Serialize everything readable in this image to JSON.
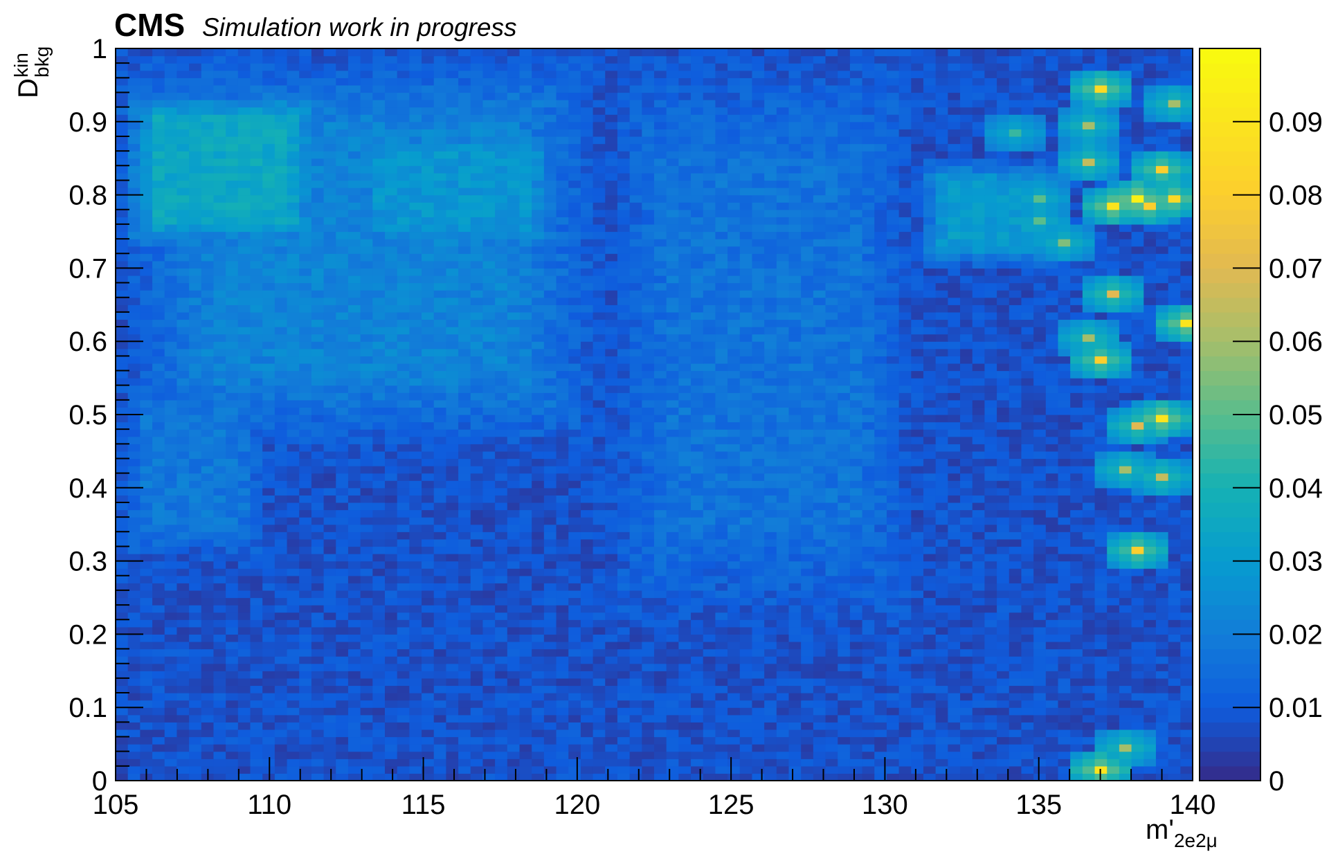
{
  "header": {
    "experiment": "CMS",
    "subtitle": "Simulation work in progress"
  },
  "chart_data": {
    "type": "heatmap",
    "title": "",
    "xlabel": {
      "main": "m'",
      "sub": "2e2μ"
    },
    "ylabel": {
      "main": "D",
      "sup": "kin",
      "sub": "bkg"
    },
    "xlim": [
      105,
      140
    ],
    "ylim": [
      0,
      1
    ],
    "zlim": [
      0,
      0.1
    ],
    "x_ticks": [
      "105",
      "110",
      "115",
      "120",
      "125",
      "130",
      "135",
      "140"
    ],
    "y_ticks": [
      "0",
      "0.1",
      "0.2",
      "0.3",
      "0.4",
      "0.5",
      "0.6",
      "0.7",
      "0.8",
      "0.9",
      "1"
    ],
    "z_ticks": [
      "0",
      "0.01",
      "0.02",
      "0.03",
      "0.04",
      "0.05",
      "0.06",
      "0.07",
      "0.08",
      "0.09"
    ],
    "palette": "kBird",
    "grid": false,
    "regions": [
      {
        "x": [
          105,
          140
        ],
        "y": [
          0,
          1
        ],
        "z": 0.008
      },
      {
        "x": [
          105,
          121
        ],
        "y": [
          0.45,
          1
        ],
        "z": 0.022
      },
      {
        "x": [
          121,
          131
        ],
        "y": [
          0.2,
          1
        ],
        "z": 0.017
      },
      {
        "x": [
          105,
          112
        ],
        "y": [
          0.72,
          0.95
        ],
        "z": 0.035
      },
      {
        "x": [
          112,
          120
        ],
        "y": [
          0.72,
          0.9
        ],
        "z": 0.028
      },
      {
        "x": [
          131,
          136
        ],
        "y": [
          0.7,
          0.85
        ],
        "z": 0.03
      },
      {
        "x": [
          105,
          110
        ],
        "y": [
          0.3,
          0.55
        ],
        "z": 0.018
      }
    ],
    "hot_cells": [
      {
        "x": 136.9,
        "y": 0.945,
        "z": 0.085
      },
      {
        "x": 139.3,
        "y": 0.925,
        "z": 0.06
      },
      {
        "x": 139.0,
        "y": 0.835,
        "z": 0.08
      },
      {
        "x": 138.2,
        "y": 0.795,
        "z": 0.095
      },
      {
        "x": 139.6,
        "y": 0.795,
        "z": 0.085
      },
      {
        "x": 138.8,
        "y": 0.785,
        "z": 0.08
      },
      {
        "x": 137.6,
        "y": 0.785,
        "z": 0.09
      },
      {
        "x": 136.7,
        "y": 0.895,
        "z": 0.06
      },
      {
        "x": 136.7,
        "y": 0.845,
        "z": 0.065
      },
      {
        "x": 137.5,
        "y": 0.665,
        "z": 0.07
      },
      {
        "x": 139.8,
        "y": 0.625,
        "z": 0.09
      },
      {
        "x": 137.1,
        "y": 0.575,
        "z": 0.08
      },
      {
        "x": 136.5,
        "y": 0.605,
        "z": 0.06
      },
      {
        "x": 138.9,
        "y": 0.495,
        "z": 0.09
      },
      {
        "x": 138.3,
        "y": 0.485,
        "z": 0.07
      },
      {
        "x": 139.1,
        "y": 0.415,
        "z": 0.065
      },
      {
        "x": 137.9,
        "y": 0.425,
        "z": 0.06
      },
      {
        "x": 138.4,
        "y": 0.315,
        "z": 0.08
      },
      {
        "x": 136.9,
        "y": 0.015,
        "z": 0.09
      },
      {
        "x": 137.8,
        "y": 0.045,
        "z": 0.06
      },
      {
        "x": 134.9,
        "y": 0.765,
        "z": 0.05
      },
      {
        "x": 136.0,
        "y": 0.735,
        "z": 0.055
      },
      {
        "x": 135.0,
        "y": 0.795,
        "z": 0.05
      },
      {
        "x": 134.4,
        "y": 0.885,
        "z": 0.045
      }
    ]
  }
}
